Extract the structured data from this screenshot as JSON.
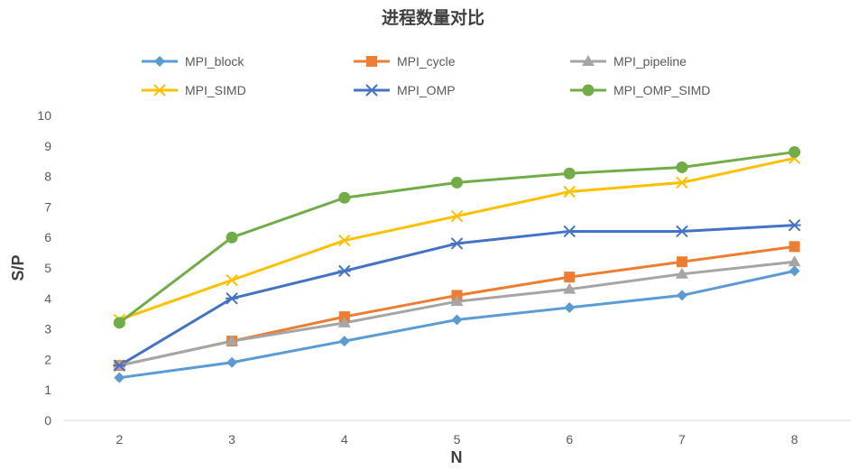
{
  "chart_data": {
    "type": "line",
    "title": "进程数量对比",
    "xlabel": "N",
    "ylabel": "S/P",
    "x": [
      2,
      3,
      4,
      5,
      6,
      7,
      8
    ],
    "ylim": [
      0,
      10
    ],
    "yticks": [
      0,
      1,
      2,
      3,
      4,
      5,
      6,
      7,
      8,
      9,
      10
    ],
    "grid": false,
    "legend_position": "top",
    "series": [
      {
        "name": "MPI_block",
        "color": "#5B9BD5",
        "marker": "diamond",
        "values": [
          1.4,
          1.9,
          2.6,
          3.3,
          3.7,
          4.1,
          4.9
        ]
      },
      {
        "name": "MPI_cycle",
        "color": "#ED7D31",
        "marker": "square",
        "values": [
          1.8,
          2.6,
          3.4,
          4.1,
          4.7,
          5.2,
          5.7
        ]
      },
      {
        "name": "MPI_pipeline",
        "color": "#A5A5A5",
        "marker": "triangle",
        "values": [
          1.8,
          2.6,
          3.2,
          3.9,
          4.3,
          4.8,
          5.2
        ]
      },
      {
        "name": "MPI_SIMD",
        "color": "#FFC000",
        "marker": "x",
        "values": [
          3.3,
          4.6,
          5.9,
          6.7,
          7.5,
          7.8,
          8.6
        ]
      },
      {
        "name": "MPI_OMP",
        "color": "#4472C4",
        "marker": "star",
        "values": [
          1.8,
          4.0,
          4.9,
          5.8,
          6.2,
          6.2,
          6.4
        ]
      },
      {
        "name": "MPI_OMP_SIMD",
        "color": "#70AD47",
        "marker": "circle",
        "values": [
          3.2,
          6.0,
          7.3,
          7.8,
          8.1,
          8.3,
          8.8
        ]
      }
    ]
  }
}
